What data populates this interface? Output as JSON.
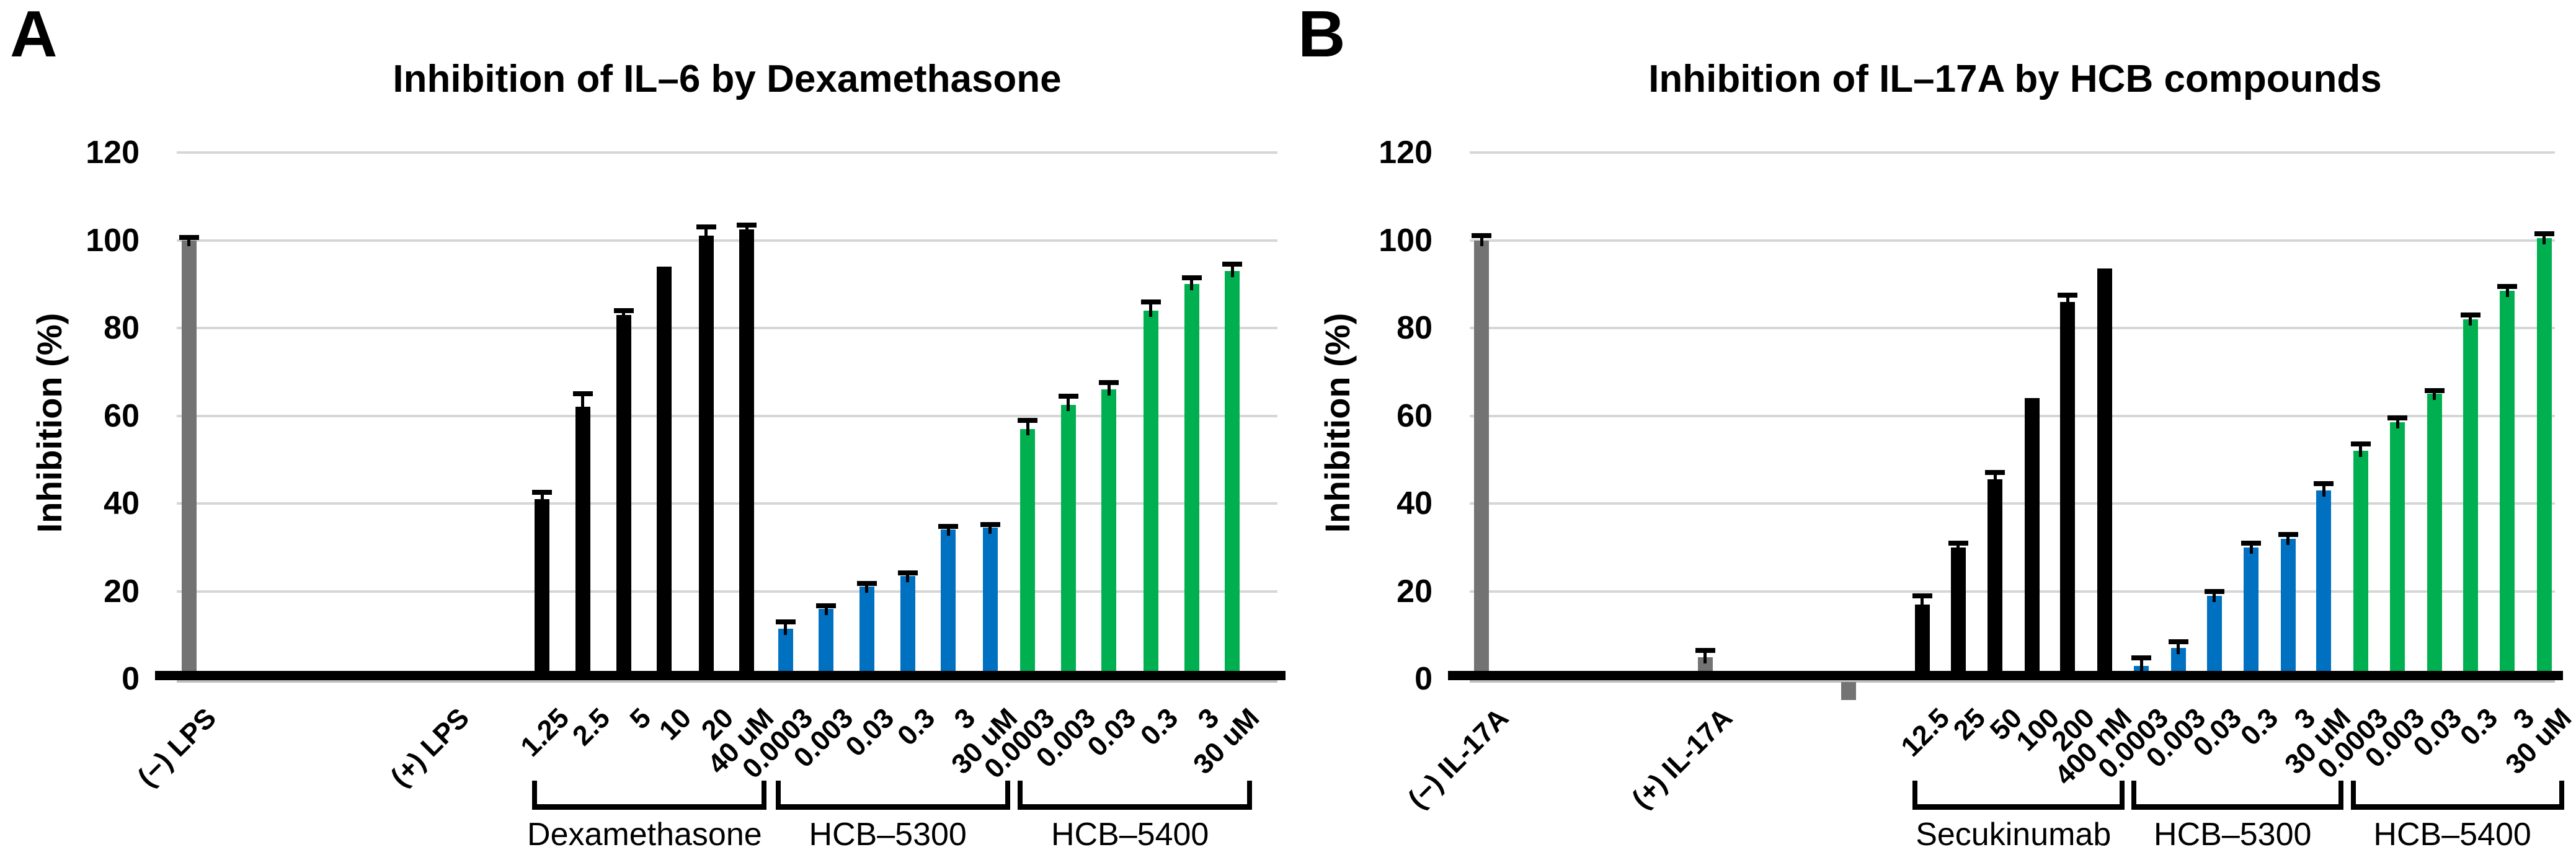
{
  "palette": {
    "gray": "#737373",
    "black": "#000000",
    "blue": "#0070C0",
    "green": "#00B050",
    "gridline": "#D6D6D6",
    "axis": "#000000",
    "background": "#FFFFFF"
  },
  "chart_data": [
    {
      "type": "bar",
      "panel_label": "A",
      "title": "Inhibition of IL–6 by Dexamethasone",
      "ylabel": "Inhibition (%)",
      "xlabel": "",
      "yticks": [
        0,
        20,
        40,
        60,
        80,
        100,
        120
      ],
      "ylim": [
        0,
        120
      ],
      "grid": true,
      "legend": "none",
      "bars": [
        {
          "label": "(−) LPS",
          "x": 0.011,
          "value": 100,
          "err": 0.7,
          "color": "gray"
        },
        {
          "label": "(+) LPS",
          "x": 0.241,
          "value": 0,
          "err": 0,
          "color": "gray"
        },
        {
          "label": "1.25",
          "x": 0.332,
          "value": 41,
          "err": 1.5,
          "color": "black"
        },
        {
          "label": "2.5",
          "x": 0.369,
          "value": 62,
          "err": 3,
          "color": "black"
        },
        {
          "label": "5",
          "x": 0.406,
          "value": 83,
          "err": 1,
          "color": "black"
        },
        {
          "label": "10",
          "x": 0.443,
          "value": 94,
          "err": 0,
          "color": "black"
        },
        {
          "label": "20",
          "x": 0.481,
          "value": 101,
          "err": 2,
          "color": "black"
        },
        {
          "label": "40 uM",
          "x": 0.518,
          "value": 102.5,
          "err": 1,
          "color": "black"
        },
        {
          "label": "0.0003",
          "x": 0.553,
          "value": 11.5,
          "err": 1.5,
          "color": "blue"
        },
        {
          "label": "0.003",
          "x": 0.59,
          "value": 16,
          "err": 0.7,
          "color": "blue"
        },
        {
          "label": "0.03",
          "x": 0.627,
          "value": 21,
          "err": 0.7,
          "color": "blue"
        },
        {
          "label": "0.3",
          "x": 0.664,
          "value": 23.5,
          "err": 0.7,
          "color": "blue"
        },
        {
          "label": "3",
          "x": 0.701,
          "value": 34,
          "err": 0.7,
          "color": "blue"
        },
        {
          "label": "30 uM",
          "x": 0.739,
          "value": 34.5,
          "err": 0.7,
          "color": "blue"
        },
        {
          "label": "0.0003",
          "x": 0.773,
          "value": 57,
          "err": 2,
          "color": "green"
        },
        {
          "label": "0.003",
          "x": 0.81,
          "value": 62.5,
          "err": 2,
          "color": "green"
        },
        {
          "label": "0.03",
          "x": 0.847,
          "value": 66,
          "err": 1.5,
          "color": "green"
        },
        {
          "label": "0.3",
          "x": 0.885,
          "value": 84,
          "err": 2,
          "color": "green"
        },
        {
          "label": "3",
          "x": 0.922,
          "value": 90,
          "err": 1.5,
          "color": "green"
        },
        {
          "label": "30 uM",
          "x": 0.959,
          "value": 93,
          "err": 1.5,
          "color": "green"
        }
      ],
      "groups": [
        {
          "label": "Dexamethasone",
          "start": 2,
          "end": 7
        },
        {
          "label": "HCB–5300",
          "start": 8,
          "end": 13
        },
        {
          "label": "HCB–5400",
          "start": 14,
          "end": 19
        }
      ]
    },
    {
      "type": "bar",
      "panel_label": "B",
      "title": "Inhibition of IL–17A by HCB compounds",
      "ylabel": "Inhibition (%)",
      "xlabel": "",
      "yticks": [
        0,
        20,
        40,
        60,
        80,
        100,
        120
      ],
      "ylim": [
        0,
        120
      ],
      "grid": true,
      "legend": "none",
      "bars": [
        {
          "label": "(−) IL-17A",
          "x": 0.011,
          "value": 100,
          "err": 1,
          "color": "gray"
        },
        {
          "label": "(+) IL-17A",
          "x": 0.217,
          "value": 5,
          "err": 1.5,
          "color": "gray"
        },
        {
          "label": "",
          "x": 0.282,
          "value": 1,
          "err": 0,
          "color": "black"
        },
        {
          "label": "",
          "x": 0.349,
          "value": -4,
          "err": 0,
          "color": "gray"
        },
        {
          "label": "12.5",
          "x": 0.417,
          "value": 17,
          "err": 2,
          "color": "black"
        },
        {
          "label": "25",
          "x": 0.45,
          "value": 30,
          "err": 1,
          "color": "black"
        },
        {
          "label": "50",
          "x": 0.484,
          "value": 45.5,
          "err": 1.5,
          "color": "black"
        },
        {
          "label": "100",
          "x": 0.518,
          "value": 64,
          "err": 0,
          "color": "black"
        },
        {
          "label": "200",
          "x": 0.551,
          "value": 86,
          "err": 1.5,
          "color": "black"
        },
        {
          "label": "400 nM",
          "x": 0.585,
          "value": 93.5,
          "err": 0,
          "color": "black"
        },
        {
          "label": "0.0003",
          "x": 0.619,
          "value": 3,
          "err": 1.8,
          "color": "blue"
        },
        {
          "label": "0.003",
          "x": 0.653,
          "value": 7,
          "err": 1.5,
          "color": "blue"
        },
        {
          "label": "0.03",
          "x": 0.686,
          "value": 19,
          "err": 1,
          "color": "blue"
        },
        {
          "label": "0.3",
          "x": 0.72,
          "value": 30,
          "err": 1,
          "color": "blue"
        },
        {
          "label": "3",
          "x": 0.754,
          "value": 32,
          "err": 1,
          "color": "blue"
        },
        {
          "label": "30 uM",
          "x": 0.787,
          "value": 43,
          "err": 1.5,
          "color": "blue"
        },
        {
          "label": "0.0003",
          "x": 0.821,
          "value": 52,
          "err": 1.5,
          "color": "green"
        },
        {
          "label": "0.003",
          "x": 0.855,
          "value": 58.5,
          "err": 1,
          "color": "green"
        },
        {
          "label": "0.03",
          "x": 0.889,
          "value": 65,
          "err": 0.7,
          "color": "green"
        },
        {
          "label": "0.3",
          "x": 0.922,
          "value": 82,
          "err": 1,
          "color": "green"
        },
        {
          "label": "3",
          "x": 0.956,
          "value": 88.5,
          "err": 1,
          "color": "green"
        },
        {
          "label": "30 uM",
          "x": 0.99,
          "value": 100.5,
          "err": 1,
          "color": "green"
        }
      ],
      "groups": [
        {
          "label": "Secukinumab",
          "start": 4,
          "end": 9
        },
        {
          "label": "HCB–5300",
          "start": 10,
          "end": 15
        },
        {
          "label": "HCB–5400",
          "start": 16,
          "end": 21
        }
      ]
    }
  ]
}
